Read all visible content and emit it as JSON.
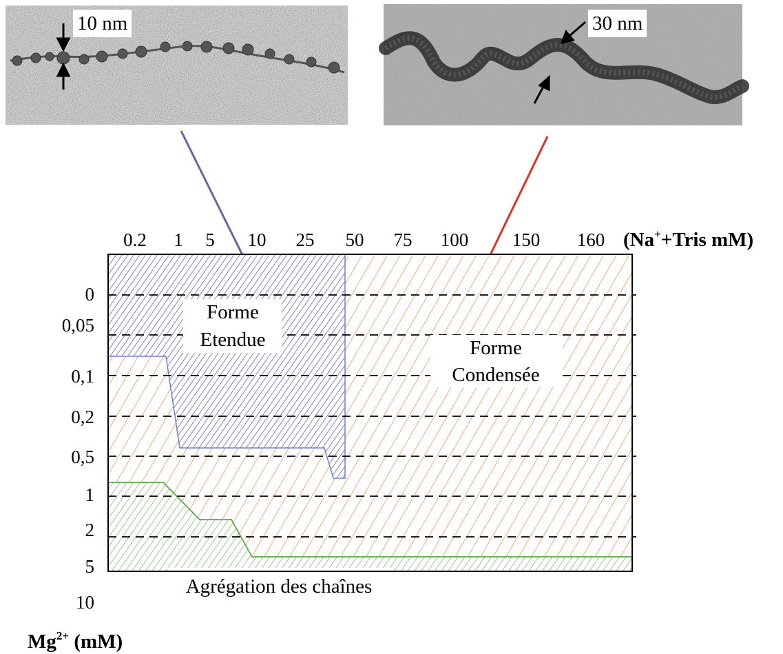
{
  "micrographs": {
    "left": {
      "label": "10 nm"
    },
    "right": {
      "label": "30 nm"
    }
  },
  "axes": {
    "top_ticks": [
      "0.2",
      "1",
      "5",
      "10",
      "25",
      "50",
      "75",
      "100",
      "150",
      "160"
    ],
    "top_unit_prefix": "(Na",
    "top_unit_sup": "+",
    "top_unit_suffix": "+Tris mM)",
    "left_ticks": [
      "0",
      "0,05",
      "0,1",
      "0,2",
      "0,5",
      "1",
      "2",
      "5",
      "10"
    ],
    "left_unit_base": "Mg",
    "left_unit_sup": "2+",
    "left_unit_suffix": " (mM)"
  },
  "regions": {
    "extended": {
      "line1": "Forme",
      "line2": "Etendue"
    },
    "condensed": {
      "line1": "Forme",
      "line2": "Condensée"
    },
    "aggregation": {
      "label": "Agrégation des chaînes"
    }
  },
  "colors": {
    "extended": "#5a5fa8",
    "condensed": "#e8833a",
    "aggregation": "#5aaa4a",
    "arrow_left": "#7060a8",
    "arrow_right": "#e03020"
  }
}
